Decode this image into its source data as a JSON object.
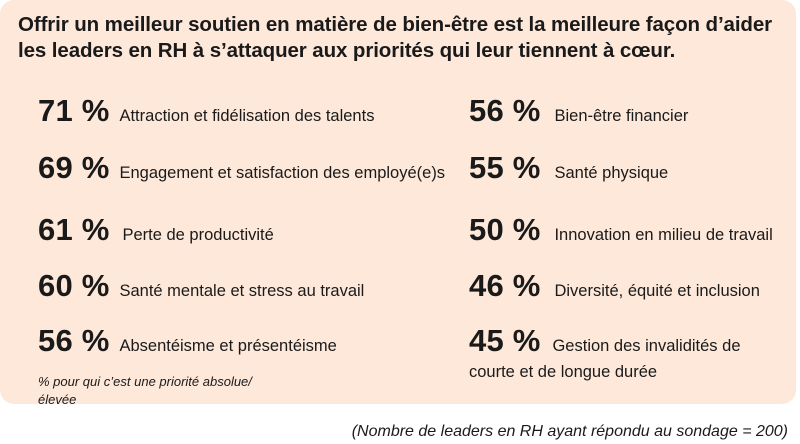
{
  "title": "Offrir un meilleur soutien en matière de bien-être est la meilleure façon d’aider les leaders en RH à s’attaquer aux priorités qui leur tiennent à cœur.",
  "left_items": [
    {
      "pct": "71 %",
      "label": "Attraction et fidélisation des talents"
    },
    {
      "pct": "69 %",
      "label": "Engagement et satisfaction des employé(e)s"
    },
    {
      "pct": "61 %",
      "label": "Perte de productivité"
    },
    {
      "pct": "60 %",
      "label": "Santé mentale et stress au travail"
    },
    {
      "pct": "56 %",
      "label": "Absentéisme et présentéisme"
    }
  ],
  "right_items": [
    {
      "pct": "56 %",
      "label": "Bien-être financier"
    },
    {
      "pct": "55 %",
      "label": "Santé physique"
    },
    {
      "pct": "50 %",
      "label": "Innovation en milieu de travail"
    },
    {
      "pct": "46 %",
      "label": "Diversité, équité et inclusion"
    },
    {
      "pct": "45 %",
      "label": "Gestion des invalidités de",
      "label_line2": "courte et de longue durée"
    }
  ],
  "note": "% pour qui c’est une priorité absolue/élevée",
  "footer": "(Nombre de leaders en RH ayant répondu au sondage = 200)"
}
